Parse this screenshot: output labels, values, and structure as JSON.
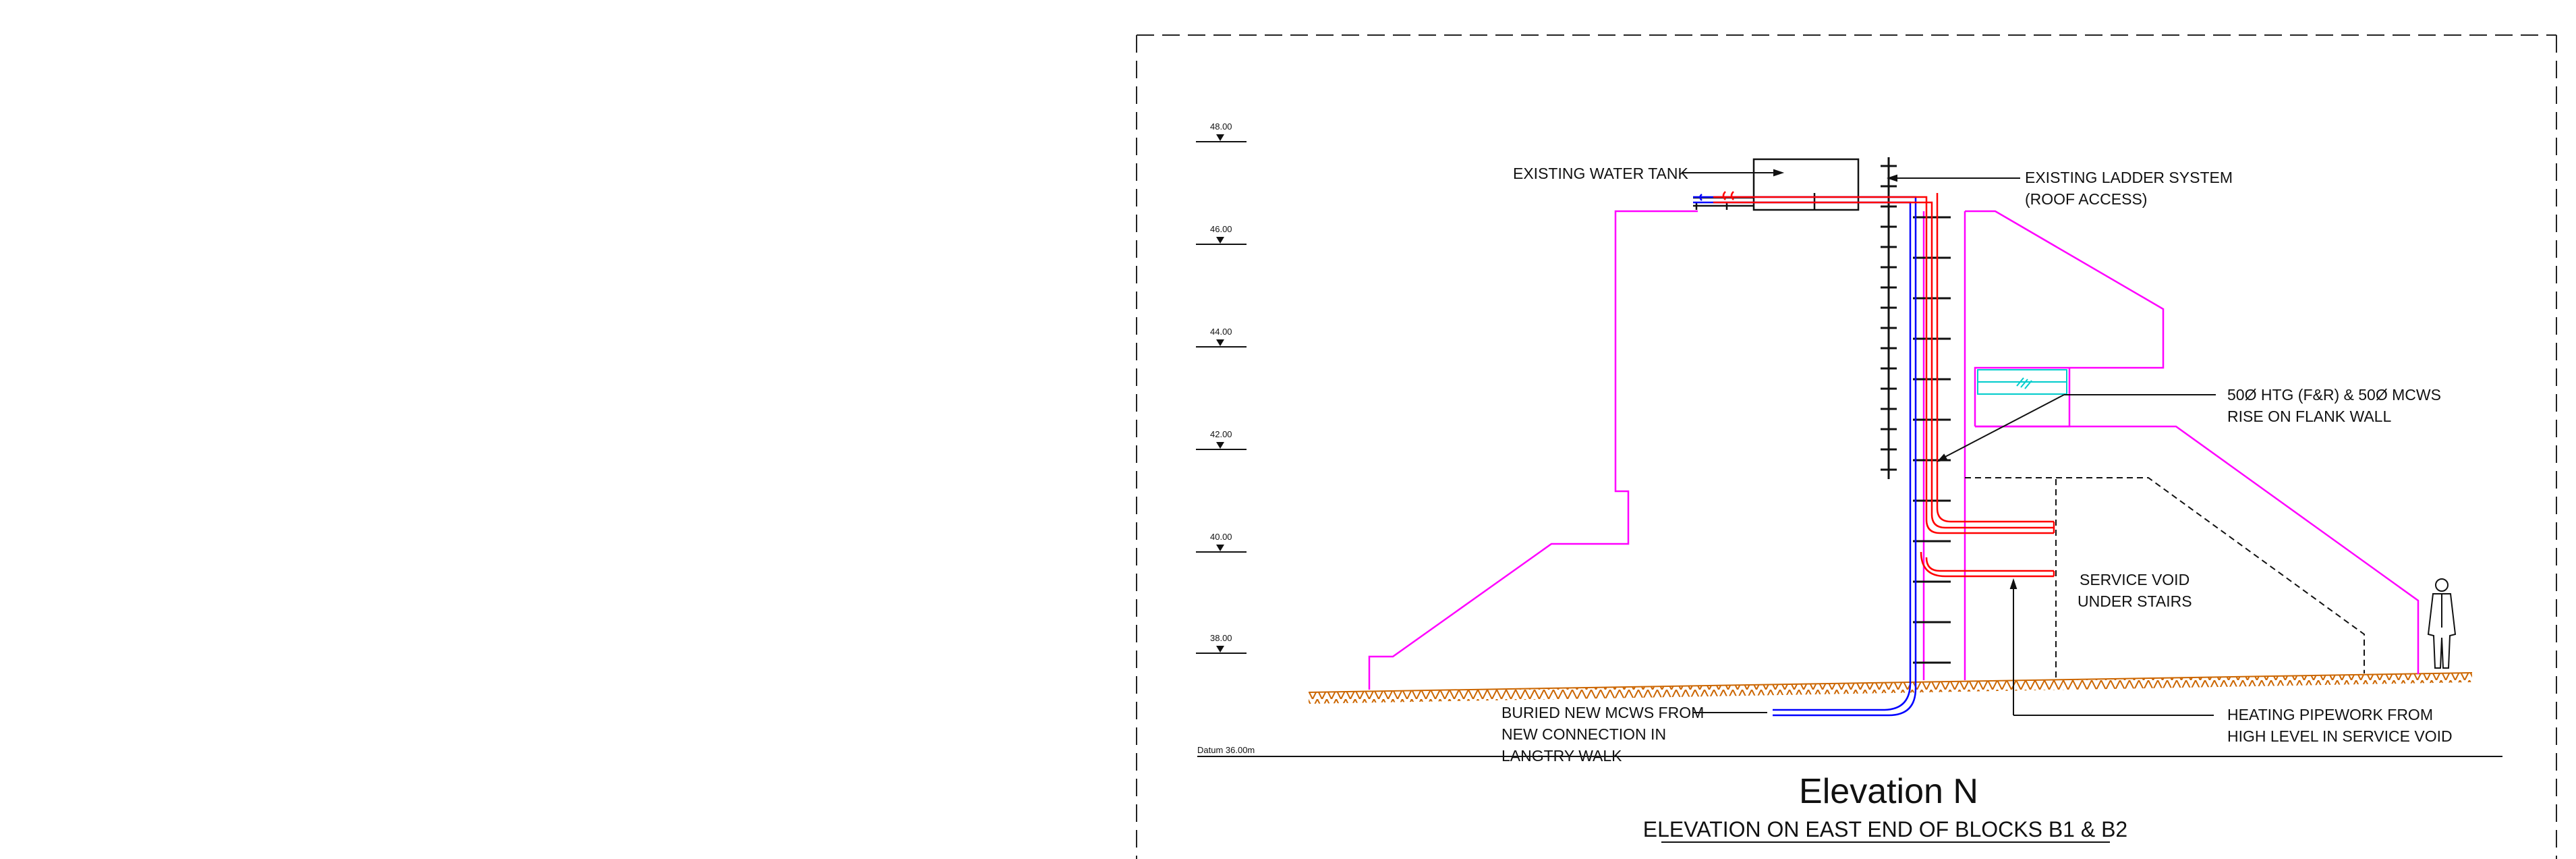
{
  "levels": [
    "48.00",
    "46.00",
    "44.00",
    "42.00",
    "40.00",
    "38.00"
  ],
  "datum": "Datum  36.00m",
  "labels": {
    "water_tank": "EXISTING WATER TANK",
    "ladder_1": "EXISTING LADDER SYSTEM",
    "ladder_2": "(ROOF ACCESS)",
    "pipes_1": "50Ø HTG (F&R) & 50Ø MCWS",
    "pipes_2": "RISE ON FLANK WALL",
    "void_1": "SERVICE VOID",
    "void_2": "UNDER STAIRS",
    "buried_1": "BURIED NEW MCWS FROM",
    "buried_2": "NEW CONNECTION IN",
    "buried_3": "LANGTRY WALK",
    "heating_1": "HEATING PIPEWORK FROM",
    "heating_2": "HIGH LEVEL IN SERVICE VOID"
  },
  "title": "Elevation N",
  "subtitle": "ELEVATION ON EAST END OF BLOCKS B1 & B2",
  "colors": {
    "building": "#ff00ff",
    "cold_water": "#0000ff",
    "heating": "#ff0000",
    "ground": "#cc6600",
    "glass": "#00cccc",
    "line": "#111111"
  },
  "icons": {
    "person": "standing-person-icon",
    "level_marker": "level-triangle-icon"
  }
}
